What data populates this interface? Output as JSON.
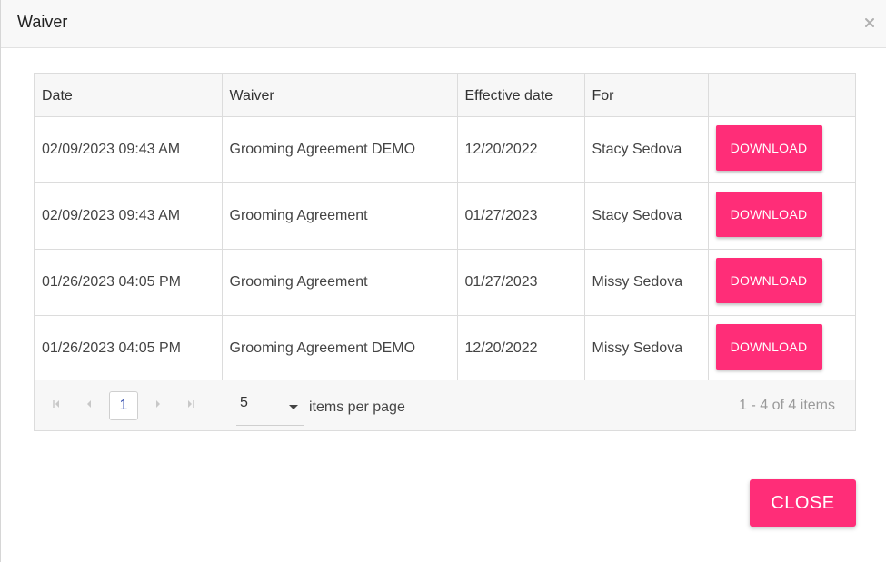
{
  "dialog": {
    "title": "Waiver",
    "close_button": "CLOSE"
  },
  "table": {
    "columns": [
      "Date",
      "Waiver",
      "Effective date",
      "For",
      ""
    ],
    "rows": [
      {
        "date": "02/09/2023 09:43 AM",
        "waiver": "Grooming Agreement DEMO",
        "effective": "12/20/2022",
        "for": "Stacy Sedova",
        "action": "DOWNLOAD"
      },
      {
        "date": "02/09/2023 09:43 AM",
        "waiver": "Grooming Agreement",
        "effective": "01/27/2023",
        "for": "Stacy Sedova",
        "action": "DOWNLOAD"
      },
      {
        "date": "01/26/2023 04:05 PM",
        "waiver": "Grooming Agreement",
        "effective": "01/27/2023",
        "for": "Missy Sedova",
        "action": "DOWNLOAD"
      },
      {
        "date": "01/26/2023 04:05 PM",
        "waiver": "Grooming Agreement DEMO",
        "effective": "12/20/2022",
        "for": "Missy Sedova",
        "action": "DOWNLOAD"
      }
    ]
  },
  "pager": {
    "current_page": "1",
    "page_size": "5",
    "items_per_page_label": "items per page",
    "info": "1 - 4 of 4 items"
  },
  "icons": {
    "close": "close-icon",
    "first": "first-page-icon",
    "prev": "previous-page-icon",
    "next": "next-page-icon",
    "last": "last-page-icon"
  },
  "colors": {
    "accent": "#ff2d78",
    "page_link": "#3a53b0"
  }
}
